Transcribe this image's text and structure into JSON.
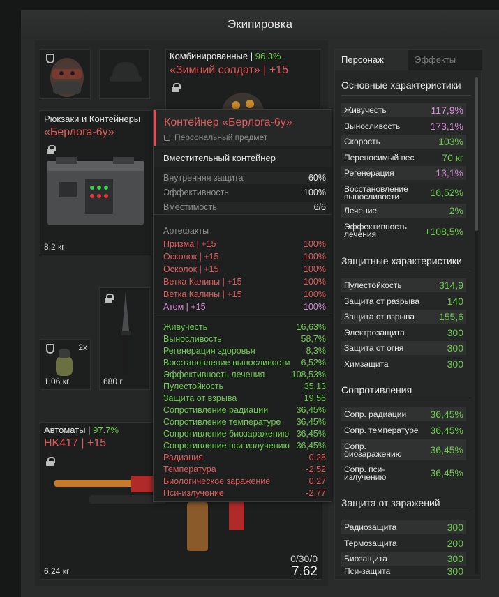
{
  "window": {
    "title": "Экипировка"
  },
  "slots": {
    "armor": {
      "caption_category": "Комбинированные",
      "caption_sep": " | ",
      "caption_pct": "96.3%",
      "name": "«Зимний солдат» | +15"
    },
    "backpack": {
      "caption": "Рюкзаки и Контейнеры",
      "name": "«Берлога-6у»",
      "weight": "8,2 кг"
    },
    "grenade": {
      "count": "2x",
      "weight": "1,06 кг"
    },
    "knife": {
      "weight": "680 г"
    },
    "weapon": {
      "caption_category": "Автоматы",
      "caption_sep": " | ",
      "caption_pct": "97.7%",
      "name": "HK417 | +15",
      "weight": "6,24 кг",
      "ammo": "0/30/0",
      "caliber": "7.62"
    }
  },
  "tooltip": {
    "title": "Контейнер «Берлога-6у»",
    "subtitle": "Персональный предмет",
    "description": "Вместительный контейнер",
    "props": [
      {
        "k": "Внутренняя защита",
        "v": "60%"
      },
      {
        "k": "Эффективность",
        "v": "100%"
      },
      {
        "k": "Вместимость",
        "v": "6/6"
      }
    ],
    "artifacts_label": "Артефакты",
    "artifacts": [
      {
        "k": "Призма | +15",
        "v": "100%"
      },
      {
        "k": "Осколок | +15",
        "v": "100%"
      },
      {
        "k": "Осколок | +15",
        "v": "100%"
      },
      {
        "k": "Ветка Калины | +15",
        "v": "100%"
      },
      {
        "k": "Ветка Калины | +15",
        "v": "100%"
      },
      {
        "k": "Атом | +15",
        "v": "100%"
      }
    ],
    "bonuses": [
      {
        "k": "Живучесть",
        "v": "16,63%"
      },
      {
        "k": "Выносливость",
        "v": "58,7%"
      },
      {
        "k": "Регенерация здоровья",
        "v": "8,3%"
      },
      {
        "k": "Восстановление выносливости",
        "v": "6,52%"
      },
      {
        "k": "Эффективность лечения",
        "v": "108,53%"
      },
      {
        "k": "Пулестойкость",
        "v": "35,13"
      },
      {
        "k": "Защита от взрыва",
        "v": "19,56"
      },
      {
        "k": "Сопротивление радиации",
        "v": "36,45%"
      },
      {
        "k": "Сопротивление температуре",
        "v": "36,45%"
      },
      {
        "k": "Сопротивление биозаражению",
        "v": "36,45%"
      },
      {
        "k": "Сопротивление пси-излучению",
        "v": "36,45%"
      }
    ],
    "penalties": [
      {
        "k": "Радиация",
        "v": "0,28"
      },
      {
        "k": "Температура",
        "v": "-2,52"
      },
      {
        "k": "Биологическое заражение",
        "v": "0,27"
      },
      {
        "k": "Пси-излучение",
        "v": "-2,77"
      }
    ]
  },
  "panel": {
    "tabs": [
      "Персонаж",
      "Эффекты"
    ],
    "sections": {
      "main": "Основные характеристики",
      "protect": "Защитные характеристики",
      "resist": "Сопротивления",
      "infect": "Защита от заражений"
    },
    "main_stats": [
      {
        "k": "Живучесть",
        "v": "117,9%"
      },
      {
        "k": "Выносливость",
        "v": "173,1%"
      },
      {
        "k": "Скорость",
        "v": "103%"
      },
      {
        "k": "Переносимый вес",
        "v": "70 кг"
      },
      {
        "k": "Регенерация",
        "v": "13,1%"
      },
      {
        "k": "Восстановление выносливости",
        "v": "16,52%"
      },
      {
        "k": "Лечение",
        "v": "2%"
      },
      {
        "k": "Эффективность лечения",
        "v": "+108,5%"
      }
    ],
    "protect_stats": [
      {
        "k": "Пулестойкость",
        "v": "314,9"
      },
      {
        "k": "Защита от разрыва",
        "v": "140"
      },
      {
        "k": "Защита от взрыва",
        "v": "155,6"
      },
      {
        "k": "Электрозащита",
        "v": "300"
      },
      {
        "k": "Защита от огня",
        "v": "300"
      },
      {
        "k": "Химзащита",
        "v": "300"
      }
    ],
    "resist_stats": [
      {
        "k": "Сопр. радиации",
        "v": "36,45%"
      },
      {
        "k": "Сопр. температуре",
        "v": "36,45%"
      },
      {
        "k": "Сопр. биозаражению",
        "v": "36,45%"
      },
      {
        "k": "Сопр. пси-излучению",
        "v": "36,45%"
      }
    ],
    "infect_stats": [
      {
        "k": "Радиозащита",
        "v": "300"
      },
      {
        "k": "Термозащита",
        "v": "200"
      },
      {
        "k": "Биозащита",
        "v": "300"
      },
      {
        "k": "Пси-защита",
        "v": "300"
      }
    ]
  },
  "colors": {
    "accent_red": "#e05a5a",
    "green": "#6ccb4e",
    "pink": "#d98ad9"
  }
}
